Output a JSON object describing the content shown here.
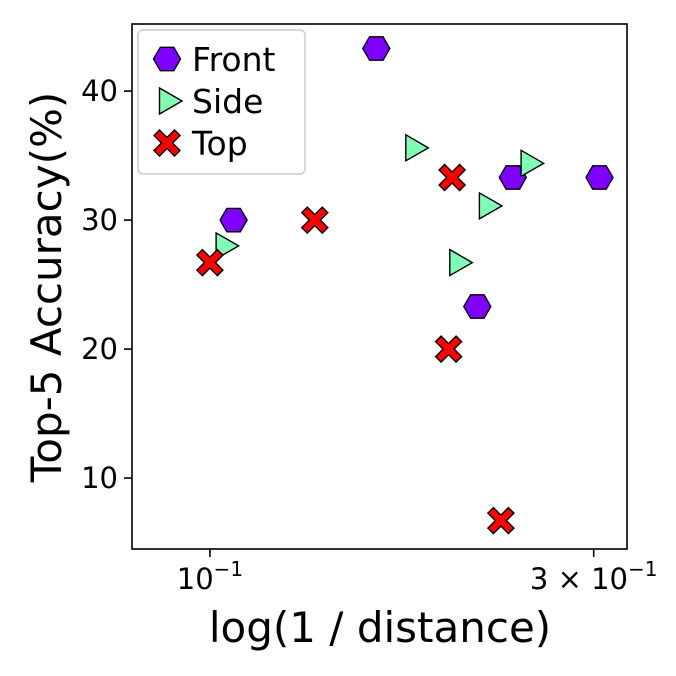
{
  "chart_data": {
    "type": "scatter",
    "xscale": "log",
    "xlim": [
      0.08,
      0.33
    ],
    "ylim": [
      4.5,
      45.2
    ],
    "xlabel": "log(1 / distance)",
    "ylabel": "Top-5 Accuracy(%)",
    "x_ticks": [
      {
        "value": 0.1,
        "base": "10",
        "exp": "−1",
        "prefix": ""
      },
      {
        "value": 0.3,
        "base": "10",
        "exp": "−1",
        "prefix": "3 × "
      }
    ],
    "y_ticks": [
      {
        "value": 10,
        "label": "10"
      },
      {
        "value": 20,
        "label": "20"
      },
      {
        "value": 30,
        "label": "30"
      },
      {
        "value": 40,
        "label": "40"
      }
    ],
    "legend": "top-left",
    "series": [
      {
        "name": "Front",
        "marker": "hexagon",
        "color": "#7f00ff",
        "points": [
          {
            "x": 0.107,
            "y": 30.0
          },
          {
            "x": 0.161,
            "y": 43.3
          },
          {
            "x": 0.215,
            "y": 23.3
          },
          {
            "x": 0.238,
            "y": 33.3
          },
          {
            "x": 0.305,
            "y": 33.3
          }
        ]
      },
      {
        "name": "Side",
        "marker": "triangle-right",
        "color": "#80ffb4",
        "points": [
          {
            "x": 0.104,
            "y": 28.0
          },
          {
            "x": 0.179,
            "y": 35.6
          },
          {
            "x": 0.203,
            "y": 26.7
          },
          {
            "x": 0.221,
            "y": 31.1
          },
          {
            "x": 0.249,
            "y": 34.4
          }
        ]
      },
      {
        "name": "Top",
        "marker": "x-filled",
        "color": "#ff0000",
        "points": [
          {
            "x": 0.1,
            "y": 26.7
          },
          {
            "x": 0.135,
            "y": 30.0
          },
          {
            "x": 0.198,
            "y": 20.0
          },
          {
            "x": 0.2,
            "y": 33.3
          },
          {
            "x": 0.23,
            "y": 6.7
          }
        ]
      }
    ]
  }
}
